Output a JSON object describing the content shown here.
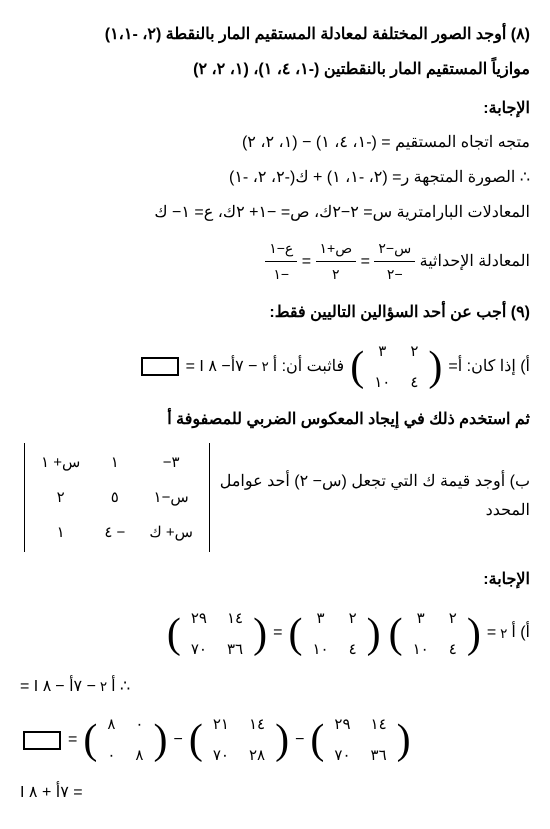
{
  "q8": {
    "header": "(٨) أوجد الصور المختلفة لمعادلة المستقيم المار بالنقطة (٢، -١،١)",
    "sub": "موازياً المستقيم المار بالنقطتين (-١، ٤، ١)، (١، ٢، ٢)",
    "answer_label": "الإجابة:",
    "line1": "متجه اتجاه المستقيم = (-١، ٤، ١) − (١، ٢، ٢)",
    "line2": "∴ الصورة المتجهة ر= (٢، -١، ١) + ك(-٢، ٢، -١)",
    "line3": "المعادلات البارامترية س= ٢−٢ك، ص= −١+ ٢ك، ع= ١− ك",
    "cartesian_label": "المعادلة الإحداثية",
    "f1n": "س−٢",
    "f1d": "−٢",
    "f2n": "ص+١",
    "f2d": "٢",
    "f3n": "ع−١",
    "f3d": "−١"
  },
  "q9": {
    "header": "(٩) أجب عن أحد السؤالين التاليين فقط:",
    "a_pre": "أ)  إذا كان: أ=",
    "m1": [
      [
        "٣",
        "٢"
      ],
      [
        "١٠",
        "٤"
      ]
    ],
    "a_mid": "فاثبت أن: أ",
    "a_sup": "٢",
    "a_post": "− ٧أ− ٨ I =",
    "a_line2": "ثم استخدم ذلك في إيجاد المعكوس الضربي للمصفوفة أ",
    "b_pre": "ب) أوجد قيمة ك التي تجعل (س− ٢) أحد عوامل المحدد",
    "det": [
      [
        "س+ ١",
        "١",
        "−٣"
      ],
      [
        "٢",
        "٥",
        "س−١"
      ],
      [
        "١",
        "٤ −",
        "س+ ك"
      ]
    ],
    "answer_label": "الإجابة:",
    "ans_a_pre": "أ) أ",
    "ans_sup": "٢",
    "eqsign": "=",
    "m_a": [
      [
        "٣",
        "٢"
      ],
      [
        "١٠",
        "٤"
      ]
    ],
    "m_b": [
      [
        "٣",
        "٢"
      ],
      [
        "١٠",
        "٤"
      ]
    ],
    "m_res1": [
      [
        "٢٩",
        "١٤"
      ],
      [
        "٧٠",
        "٣٦"
      ]
    ],
    "line2_pre": "∴ أ",
    "line2_mid": "− ٧أ −",
    "line2_post": "٨ I =",
    "m_r1": [
      [
        "٢٩",
        "١٤"
      ],
      [
        "٧٠",
        "٣٦"
      ]
    ],
    "m_r2": [
      [
        "٢١",
        "١٤"
      ],
      [
        "٧٠",
        "٢٨"
      ]
    ],
    "m_r3": [
      [
        "٨",
        "٠"
      ],
      [
        "٠",
        "٨"
      ]
    ],
    "final": "= ٧أ + ٨ I"
  }
}
